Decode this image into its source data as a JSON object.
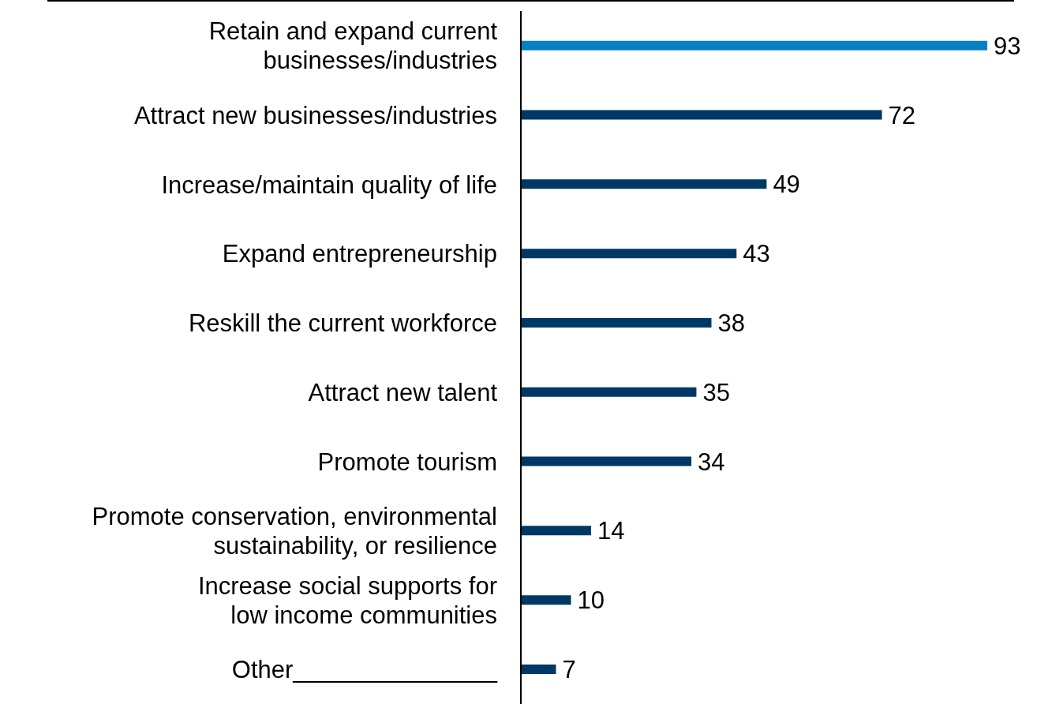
{
  "chart_data": {
    "type": "bar",
    "orientation": "horizontal",
    "categories": [
      "Retain and expand current\nbusinesses/industries",
      "Attract new businesses/industries",
      "Increase/maintain quality of life",
      "Expand entrepreneurship",
      "Reskill the current workforce",
      "Attract new talent",
      "Promote tourism",
      "Promote conservation, environmental\nsustainability, or resilience",
      "Increase social supports for\nlow income communities",
      "Other_______________"
    ],
    "values": [
      93,
      72,
      49,
      43,
      38,
      35,
      34,
      14,
      10,
      7
    ],
    "colors": [
      "#0580c0",
      "#003865",
      "#003865",
      "#003865",
      "#003865",
      "#003865",
      "#003865",
      "#003865",
      "#003865",
      "#003865"
    ],
    "data_labels": true,
    "grid": false,
    "legend": false
  }
}
